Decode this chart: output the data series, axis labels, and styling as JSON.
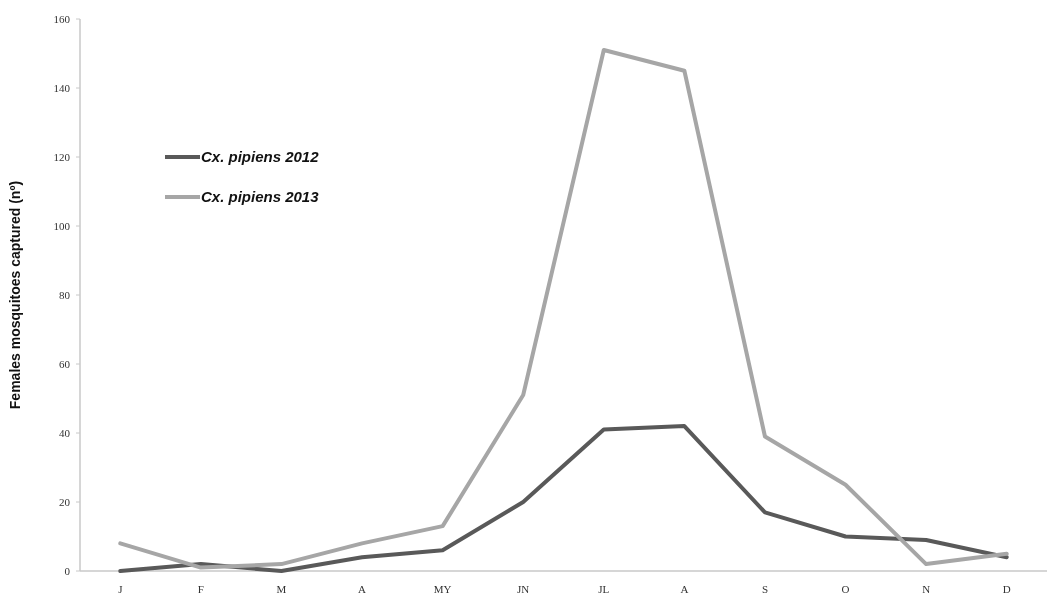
{
  "chart_data": {
    "type": "line",
    "ylabel": "Females mosquitoes captured (nº)",
    "categories": [
      "J",
      "F",
      "M",
      "A",
      "MY",
      "JN",
      "JL",
      "A",
      "S",
      "O",
      "N",
      "D"
    ],
    "series": [
      {
        "name": "Cx. pipiens 2012",
        "color": "#595959",
        "values": [
          0,
          2,
          0,
          4,
          6,
          20,
          41,
          42,
          17,
          10,
          9,
          4
        ]
      },
      {
        "name": "Cx. pipiens 2013",
        "color": "#a6a6a6",
        "values": [
          8,
          1,
          2,
          8,
          13,
          51,
          151,
          145,
          39,
          25,
          2,
          5
        ]
      }
    ],
    "ylim": [
      0,
      160
    ],
    "yticks": [
      0,
      20,
      40,
      60,
      80,
      100,
      120,
      140,
      160
    ],
    "grid": false,
    "legend": "top left",
    "marker": "none",
    "line_style": "solid"
  }
}
